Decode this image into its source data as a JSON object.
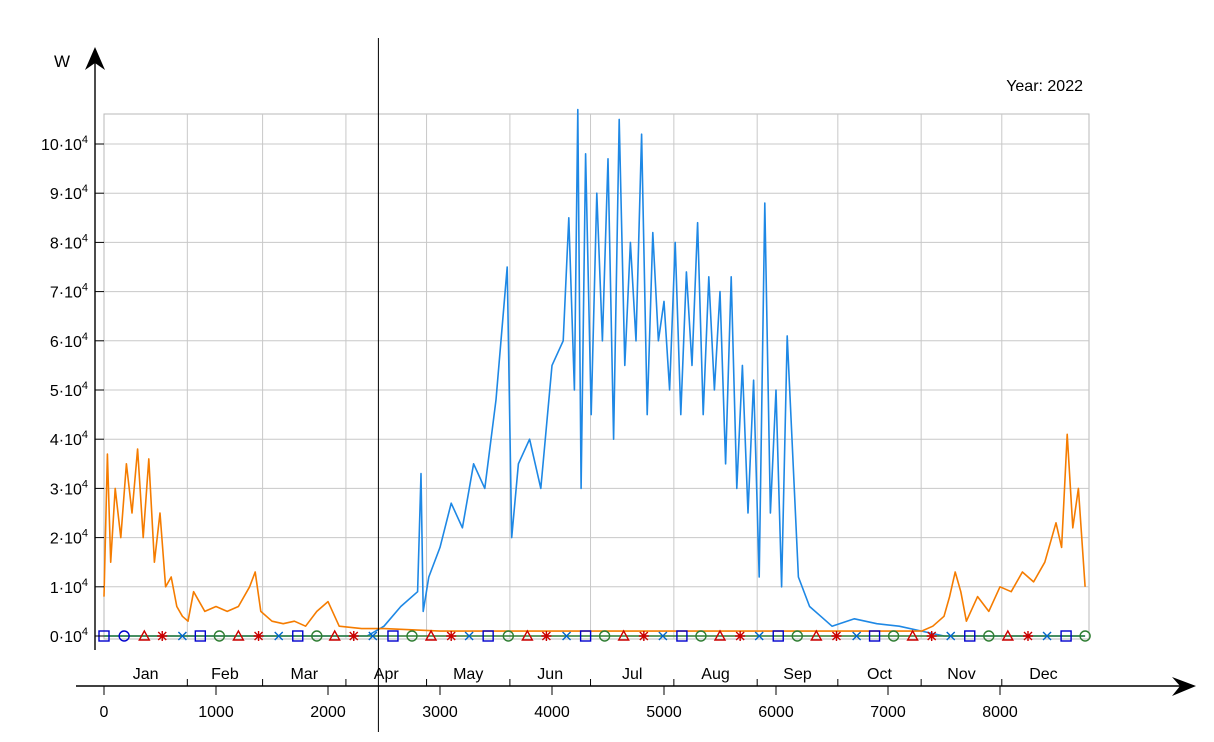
{
  "chart_data": {
    "type": "line",
    "title": "",
    "year_label": "Year: 2022",
    "y_unit": "W",
    "xlabel": "",
    "xlim": [
      0,
      8760
    ],
    "ylim": [
      0,
      107000
    ],
    "grid": true,
    "cursor_x": 2450,
    "x_ticks": [
      {
        "value": 0,
        "label": "0"
      },
      {
        "value": 1000,
        "label": "1000"
      },
      {
        "value": 2000,
        "label": "2000"
      },
      {
        "value": 3000,
        "label": "3000"
      },
      {
        "value": 4000,
        "label": "4000"
      },
      {
        "value": 5000,
        "label": "5000"
      },
      {
        "value": 6000,
        "label": "6000"
      },
      {
        "value": 7000,
        "label": "7000"
      },
      {
        "value": 8000,
        "label": "8000"
      }
    ],
    "y_ticks": [
      {
        "value": 0,
        "mant": "0",
        "base": "·10",
        "exp": "4"
      },
      {
        "value": 10000,
        "mant": "1",
        "base": "·10",
        "exp": "4"
      },
      {
        "value": 20000,
        "mant": "2",
        "base": "·10",
        "exp": "4"
      },
      {
        "value": 30000,
        "mant": "3",
        "base": "·10",
        "exp": "4"
      },
      {
        "value": 40000,
        "mant": "4",
        "base": "·10",
        "exp": "4"
      },
      {
        "value": 50000,
        "mant": "5",
        "base": "·10",
        "exp": "4"
      },
      {
        "value": 60000,
        "mant": "6",
        "base": "·10",
        "exp": "4"
      },
      {
        "value": 70000,
        "mant": "7",
        "base": "·10",
        "exp": "4"
      },
      {
        "value": 80000,
        "mant": "8",
        "base": "·10",
        "exp": "4"
      },
      {
        "value": 90000,
        "mant": "9",
        "base": "·10",
        "exp": "4"
      },
      {
        "value": 100000,
        "mant": "10",
        "base": "·10",
        "exp": "4"
      }
    ],
    "months": [
      {
        "label": "Jan",
        "start": 0,
        "end": 744
      },
      {
        "label": "Feb",
        "start": 744,
        "end": 1416
      },
      {
        "label": "Mar",
        "start": 1416,
        "end": 2160
      },
      {
        "label": "Apr",
        "start": 2160,
        "end": 2880
      },
      {
        "label": "May",
        "start": 2880,
        "end": 3624
      },
      {
        "label": "Jun",
        "start": 3624,
        "end": 4344
      },
      {
        "label": "Jul",
        "start": 4344,
        "end": 5088
      },
      {
        "label": "Aug",
        "start": 5088,
        "end": 5832
      },
      {
        "label": "Sep",
        "start": 5832,
        "end": 6552
      },
      {
        "label": "Oct",
        "start": 6552,
        "end": 7296
      },
      {
        "label": "Nov",
        "start": 7296,
        "end": 8016
      },
      {
        "label": "Dec",
        "start": 8016,
        "end": 8760
      }
    ],
    "series": [
      {
        "color": "#1E88E5",
        "x": [
          0,
          2350,
          2500,
          2650,
          2800,
          2830,
          2850,
          2900,
          3000,
          3100,
          3200,
          3300,
          3400,
          3500,
          3600,
          3640,
          3700,
          3800,
          3900,
          4000,
          4100,
          4150,
          4200,
          4230,
          4260,
          4300,
          4350,
          4400,
          4450,
          4500,
          4550,
          4600,
          4650,
          4700,
          4750,
          4800,
          4850,
          4900,
          4950,
          5000,
          5050,
          5100,
          5150,
          5200,
          5250,
          5300,
          5350,
          5400,
          5450,
          5500,
          5550,
          5600,
          5650,
          5700,
          5750,
          5800,
          5850,
          5900,
          5950,
          6000,
          6050,
          6100,
          6200,
          6300,
          6400,
          6500,
          6700,
          6900,
          7100,
          7300,
          7500,
          8760
        ],
        "values": [
          0,
          0,
          2000,
          6000,
          9000,
          33000,
          5000,
          12000,
          18000,
          27000,
          22000,
          35000,
          30000,
          48000,
          75000,
          20000,
          35000,
          40000,
          30000,
          55000,
          60000,
          85000,
          50000,
          107000,
          30000,
          98000,
          45000,
          90000,
          60000,
          97000,
          40000,
          105000,
          55000,
          80000,
          60000,
          102000,
          45000,
          82000,
          60000,
          68000,
          50000,
          80000,
          45000,
          74000,
          55000,
          84000,
          45000,
          73000,
          50000,
          70000,
          35000,
          73000,
          30000,
          55000,
          25000,
          52000,
          12000,
          88000,
          25000,
          50000,
          10000,
          61000,
          12000,
          6000,
          4000,
          2000,
          3500,
          2500,
          2000,
          1000,
          0,
          0
        ]
      },
      {
        "color": "#F57C00",
        "x": [
          0,
          30,
          60,
          100,
          150,
          200,
          250,
          300,
          350,
          400,
          450,
          500,
          550,
          600,
          650,
          700,
          750,
          800,
          900,
          1000,
          1100,
          1200,
          1300,
          1350,
          1400,
          1500,
          1600,
          1700,
          1800,
          1900,
          2000,
          2100,
          2300,
          2500,
          3000,
          4000,
          5000,
          6000,
          7000,
          7300,
          7400,
          7500,
          7550,
          7600,
          7650,
          7700,
          7800,
          7900,
          8000,
          8100,
          8200,
          8300,
          8400,
          8500,
          8550,
          8600,
          8650,
          8700,
          8760
        ],
        "values": [
          8000,
          37000,
          15000,
          30000,
          20000,
          35000,
          25000,
          38000,
          20000,
          36000,
          15000,
          25000,
          10000,
          12000,
          6000,
          4000,
          3000,
          9000,
          5000,
          6000,
          5000,
          6000,
          10000,
          13000,
          5000,
          3000,
          2500,
          3000,
          2000,
          5000,
          7000,
          2000,
          1500,
          1500,
          1000,
          1000,
          1000,
          1000,
          1000,
          1000,
          2000,
          4000,
          8000,
          13000,
          9000,
          3000,
          8000,
          5000,
          10000,
          9000,
          13000,
          11000,
          15000,
          23000,
          18000,
          41000,
          22000,
          30000,
          10000
        ]
      },
      {
        "color": "#2E7D32",
        "x": [
          0,
          8760
        ],
        "values": [
          0,
          0
        ]
      }
    ],
    "marker_strip": [
      {
        "x": 0,
        "shape": "square",
        "color": "#0000CC"
      },
      {
        "x": 180,
        "shape": "circle",
        "color": "#0000CC"
      },
      {
        "x": 360,
        "shape": "triangle",
        "color": "#CC0000"
      },
      {
        "x": 520,
        "shape": "star",
        "color": "#CC0000"
      },
      {
        "x": 700,
        "shape": "cross",
        "color": "#0066CC"
      },
      {
        "x": 860,
        "shape": "square",
        "color": "#0000CC"
      },
      {
        "x": 1030,
        "shape": "circle",
        "color": "#2E7D32"
      },
      {
        "x": 1200,
        "shape": "triangle",
        "color": "#CC0000"
      },
      {
        "x": 1380,
        "shape": "star",
        "color": "#CC0000"
      },
      {
        "x": 1560,
        "shape": "cross",
        "color": "#0066CC"
      },
      {
        "x": 1730,
        "shape": "square",
        "color": "#0000CC"
      },
      {
        "x": 1900,
        "shape": "circle",
        "color": "#2E7D32"
      },
      {
        "x": 2060,
        "shape": "triangle",
        "color": "#CC0000"
      },
      {
        "x": 2230,
        "shape": "star",
        "color": "#CC0000"
      },
      {
        "x": 2400,
        "shape": "cross",
        "color": "#0066CC"
      },
      {
        "x": 2580,
        "shape": "square",
        "color": "#0000CC"
      },
      {
        "x": 2750,
        "shape": "circle",
        "color": "#2E7D32"
      },
      {
        "x": 2920,
        "shape": "triangle",
        "color": "#CC0000"
      },
      {
        "x": 3100,
        "shape": "star",
        "color": "#CC0000"
      },
      {
        "x": 3260,
        "shape": "cross",
        "color": "#0066CC"
      },
      {
        "x": 3430,
        "shape": "square",
        "color": "#0000CC"
      },
      {
        "x": 3610,
        "shape": "circle",
        "color": "#2E7D32"
      },
      {
        "x": 3780,
        "shape": "triangle",
        "color": "#CC0000"
      },
      {
        "x": 3950,
        "shape": "star",
        "color": "#CC0000"
      },
      {
        "x": 4130,
        "shape": "cross",
        "color": "#0066CC"
      },
      {
        "x": 4300,
        "shape": "square",
        "color": "#0000CC"
      },
      {
        "x": 4470,
        "shape": "circle",
        "color": "#2E7D32"
      },
      {
        "x": 4640,
        "shape": "triangle",
        "color": "#CC0000"
      },
      {
        "x": 4820,
        "shape": "star",
        "color": "#CC0000"
      },
      {
        "x": 4990,
        "shape": "cross",
        "color": "#0066CC"
      },
      {
        "x": 5160,
        "shape": "square",
        "color": "#0000CC"
      },
      {
        "x": 5330,
        "shape": "circle",
        "color": "#2E7D32"
      },
      {
        "x": 5500,
        "shape": "triangle",
        "color": "#CC0000"
      },
      {
        "x": 5680,
        "shape": "star",
        "color": "#CC0000"
      },
      {
        "x": 5850,
        "shape": "cross",
        "color": "#0066CC"
      },
      {
        "x": 6020,
        "shape": "square",
        "color": "#0000CC"
      },
      {
        "x": 6190,
        "shape": "circle",
        "color": "#2E7D32"
      },
      {
        "x": 6360,
        "shape": "triangle",
        "color": "#CC0000"
      },
      {
        "x": 6540,
        "shape": "star",
        "color": "#CC0000"
      },
      {
        "x": 6720,
        "shape": "cross",
        "color": "#0066CC"
      },
      {
        "x": 6880,
        "shape": "square",
        "color": "#0000CC"
      },
      {
        "x": 7050,
        "shape": "circle",
        "color": "#2E7D32"
      },
      {
        "x": 7220,
        "shape": "triangle",
        "color": "#CC0000"
      },
      {
        "x": 7390,
        "shape": "star",
        "color": "#CC0000"
      },
      {
        "x": 7560,
        "shape": "cross",
        "color": "#0066CC"
      },
      {
        "x": 7730,
        "shape": "square",
        "color": "#0000CC"
      },
      {
        "x": 7900,
        "shape": "circle",
        "color": "#2E7D32"
      },
      {
        "x": 8070,
        "shape": "triangle",
        "color": "#CC0000"
      },
      {
        "x": 8250,
        "shape": "star",
        "color": "#CC0000"
      },
      {
        "x": 8420,
        "shape": "cross",
        "color": "#0066CC"
      },
      {
        "x": 8590,
        "shape": "square",
        "color": "#0000CC"
      },
      {
        "x": 8760,
        "shape": "circle",
        "color": "#2E7D32"
      }
    ]
  }
}
